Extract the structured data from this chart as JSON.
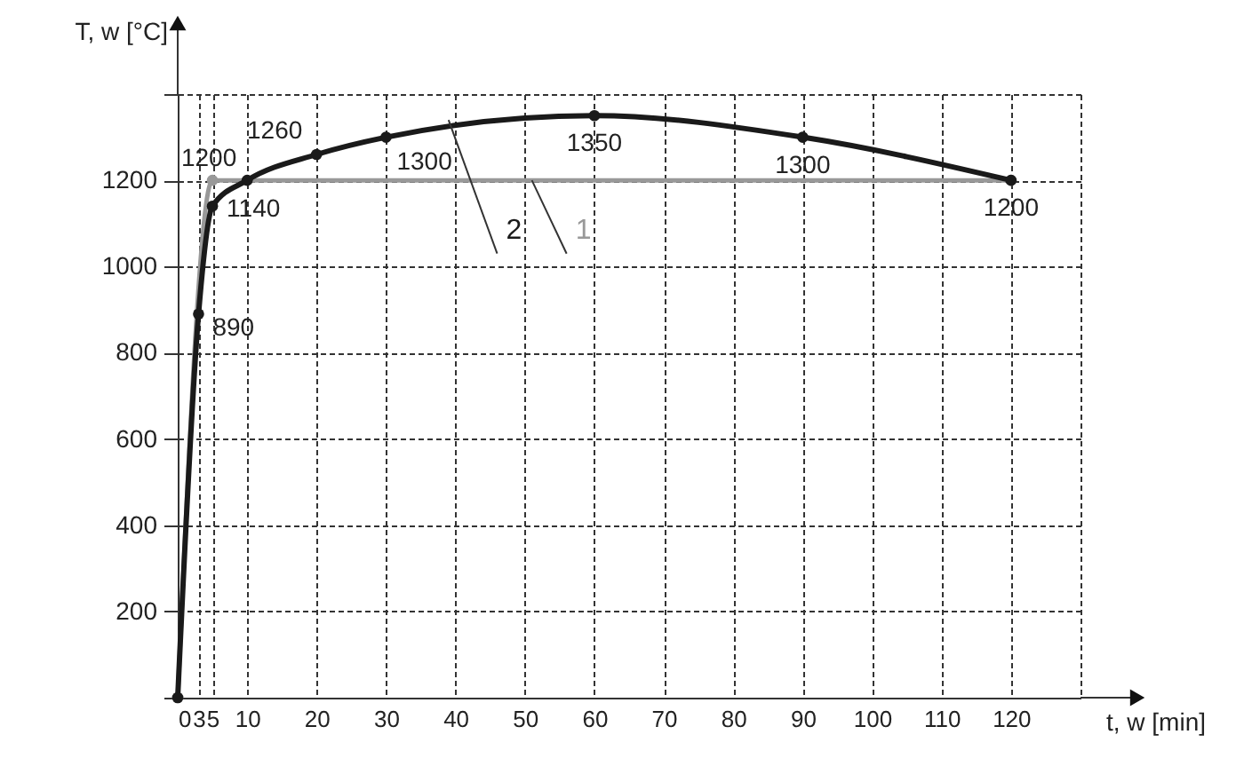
{
  "chart_data": {
    "type": "line",
    "xlabel": "t, w [min]",
    "ylabel": "T, w [°C]",
    "xlim": [
      0,
      130
    ],
    "ylim": [
      0,
      1400
    ],
    "xticks": [
      0,
      3,
      5,
      10,
      20,
      30,
      40,
      50,
      60,
      70,
      80,
      90,
      100,
      110,
      120,
      {
        "value": 130,
        "label": null
      }
    ],
    "yticks": [
      {
        "value": 0,
        "label": null
      },
      200,
      400,
      600,
      800,
      1000,
      1200,
      {
        "value": 1400,
        "label": null
      }
    ],
    "grid": true,
    "marker": "circle",
    "line_style": "solid",
    "series": [
      {
        "name": "1",
        "color": "#999999",
        "x": [
          0,
          5,
          120
        ],
        "values": [
          0,
          1200,
          1200
        ],
        "value_labels": [
          null,
          "1200",
          null
        ]
      },
      {
        "name": "2",
        "color": "#1a1a1a",
        "x": [
          0,
          3,
          5,
          10,
          20,
          30,
          60,
          90,
          120
        ],
        "values": [
          0,
          890,
          1140,
          1200,
          1260,
          1300,
          1350,
          1300,
          1200
        ],
        "value_labels": [
          null,
          "890",
          "1140",
          null,
          "1260",
          "1300",
          "1350",
          "1300",
          "1200"
        ]
      }
    ]
  }
}
